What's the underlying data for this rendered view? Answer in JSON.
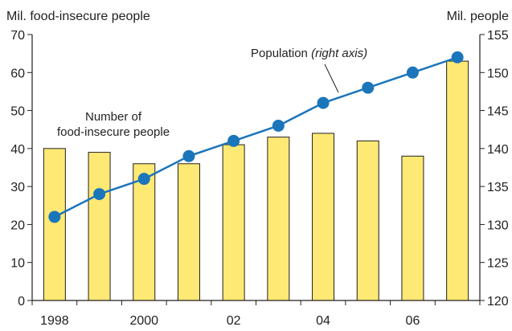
{
  "chart_data": {
    "type": "bar",
    "categories": [
      "1998",
      "1999",
      "2000",
      "2001",
      "2002",
      "2003",
      "2004",
      "2005",
      "2006",
      "2007"
    ],
    "x_tick_labels": [
      "1998",
      "",
      "2000",
      "",
      "02",
      "",
      "04",
      "",
      "06",
      ""
    ],
    "left_axis": {
      "label": "Mil. food-insecure people",
      "ylim": [
        0,
        70
      ],
      "ticks": [
        0,
        10,
        20,
        30,
        40,
        50,
        60,
        70
      ]
    },
    "right_axis": {
      "label": "Mil. people",
      "ylim": [
        120,
        155
      ],
      "ticks": [
        120,
        125,
        130,
        135,
        140,
        145,
        150,
        155
      ]
    },
    "series": [
      {
        "name": "Number of food-insecure people",
        "label_lines": [
          "Number of",
          "food-insecure people"
        ],
        "type": "bar",
        "axis": "left",
        "color": "#fde974",
        "values": [
          40,
          39,
          36,
          36,
          41,
          43,
          44,
          42,
          38,
          63
        ]
      },
      {
        "name": "Population",
        "label_suffix": "(right axis)",
        "type": "line",
        "axis": "right",
        "color": "#1b75bb",
        "values": [
          131,
          134,
          136,
          139,
          141,
          143,
          146,
          148,
          150,
          152
        ]
      }
    ],
    "grid": false
  }
}
